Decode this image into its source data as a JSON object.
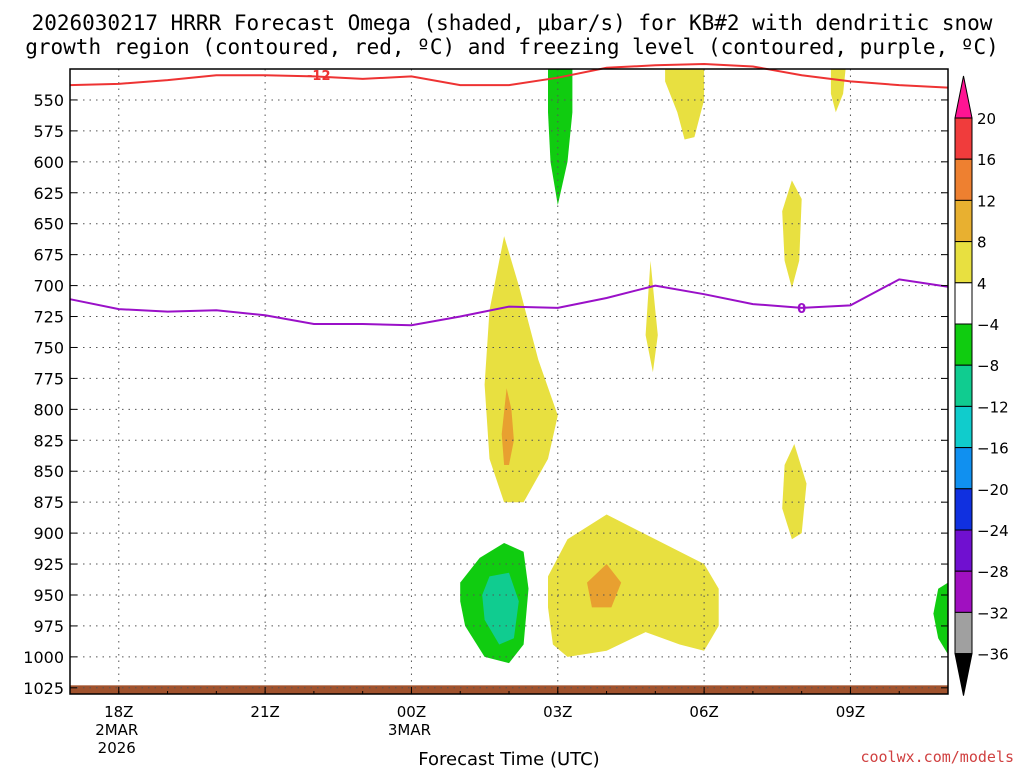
{
  "chart_data": {
    "type": "heatmap",
    "title_line1": "2026030217 HRRR Forecast Omega (shaded, μbar/s) for KB#2 with dendritic snow",
    "title_line2": "growth region (contoured, red, ºC) and freezing level (contoured, purple, ºC)",
    "xlabel": "Forecast Time (UTC)",
    "ylabel": "",
    "credit": "coolwx.com/models",
    "x_range_hours": [
      -1,
      17
    ],
    "x_ticks": [
      {
        "hour": 0,
        "label": "18Z",
        "sub1": "2MAR",
        "sub2": "2026"
      },
      {
        "hour": 3,
        "label": "21Z",
        "sub1": "",
        "sub2": ""
      },
      {
        "hour": 6,
        "label": "00Z",
        "sub1": "3MAR",
        "sub2": ""
      },
      {
        "hour": 9,
        "label": "03Z",
        "sub1": "",
        "sub2": ""
      },
      {
        "hour": 12,
        "label": "06Z",
        "sub1": "",
        "sub2": ""
      },
      {
        "hour": 15,
        "label": "09Z",
        "sub1": "",
        "sub2": ""
      }
    ],
    "y_range_hpa": [
      525,
      1030
    ],
    "y_ticks": [
      550,
      575,
      600,
      625,
      650,
      675,
      700,
      725,
      750,
      775,
      800,
      825,
      850,
      875,
      900,
      925,
      950,
      975,
      1000,
      1025
    ],
    "grid": true,
    "colorbar": {
      "levels": [
        "20",
        "16",
        "12",
        "8",
        "4",
        "−4",
        "−8",
        "−12",
        "−16",
        "−20",
        "−24",
        "−28",
        "−32",
        "−36"
      ],
      "colors": [
        "#ff1493",
        "#f03c3c",
        "#ee8030",
        "#e8b030",
        "#e8e040",
        "#ffffff",
        "#10cc10",
        "#10cc90",
        "#10cccc",
        "#1090f0",
        "#1030e0",
        "#7010d0",
        "#a010c0",
        "#a0a0a0",
        "#000000"
      ]
    },
    "contours": [
      {
        "name": "dendritic-growth-minus12",
        "label": "-12",
        "color": "#ee3333",
        "points": [
          [
            -1,
            538
          ],
          [
            0,
            537
          ],
          [
            1,
            534
          ],
          [
            2,
            530
          ],
          [
            3,
            530
          ],
          [
            4,
            531
          ],
          [
            5,
            533
          ],
          [
            6,
            531
          ],
          [
            7,
            538
          ],
          [
            8,
            538
          ],
          [
            9,
            532
          ],
          [
            10,
            524
          ],
          [
            11,
            522
          ],
          [
            12,
            521
          ],
          [
            13,
            523
          ],
          [
            14,
            530
          ],
          [
            15,
            535
          ],
          [
            16,
            538
          ],
          [
            17,
            540
          ]
        ]
      },
      {
        "name": "freezing-level-0",
        "label": "0",
        "color": "#9a10c8",
        "points": [
          [
            -1,
            711
          ],
          [
            0,
            719
          ],
          [
            1,
            721
          ],
          [
            2,
            720
          ],
          [
            3,
            724
          ],
          [
            4,
            731
          ],
          [
            5,
            731
          ],
          [
            6,
            732
          ],
          [
            7,
            725
          ],
          [
            8,
            717
          ],
          [
            9,
            718
          ],
          [
            10,
            710
          ],
          [
            11,
            700
          ],
          [
            12,
            707
          ],
          [
            13,
            715
          ],
          [
            14,
            718
          ],
          [
            15,
            716
          ],
          [
            16,
            695
          ],
          [
            17,
            701
          ]
        ]
      }
    ],
    "shaded_regions": [
      {
        "name": "yellow-plume-0130z",
        "value_range": "4 to 8",
        "color": "#e8e040",
        "polygon": [
          [
            7.9,
            660
          ],
          [
            8.2,
            700
          ],
          [
            8.6,
            760
          ],
          [
            9.0,
            805
          ],
          [
            8.8,
            840
          ],
          [
            8.3,
            875
          ],
          [
            7.9,
            875
          ],
          [
            7.6,
            840
          ],
          [
            7.5,
            780
          ],
          [
            7.6,
            720
          ]
        ]
      },
      {
        "name": "orange-core-0100z",
        "value_range": "8 to 12",
        "color": "#e8a030",
        "polygon": [
          [
            7.95,
            783
          ],
          [
            8.05,
            800
          ],
          [
            8.1,
            825
          ],
          [
            8.0,
            845
          ],
          [
            7.9,
            845
          ],
          [
            7.85,
            820
          ]
        ]
      },
      {
        "name": "green-lobe-0030z",
        "value_range": "-4 to -8",
        "color": "#10cc10",
        "polygon": [
          [
            7.0,
            940
          ],
          [
            7.4,
            920
          ],
          [
            7.9,
            908
          ],
          [
            8.3,
            915
          ],
          [
            8.4,
            945
          ],
          [
            8.3,
            990
          ],
          [
            8.0,
            1005
          ],
          [
            7.5,
            1000
          ],
          [
            7.1,
            975
          ],
          [
            7.0,
            955
          ]
        ]
      },
      {
        "name": "teal-core-0045z",
        "value_range": "-8 to -12",
        "color": "#10cc90",
        "polygon": [
          [
            7.6,
            935
          ],
          [
            8.0,
            932
          ],
          [
            8.2,
            955
          ],
          [
            8.1,
            985
          ],
          [
            7.8,
            990
          ],
          [
            7.5,
            970
          ],
          [
            7.45,
            950
          ]
        ]
      },
      {
        "name": "yellow-low-0300z",
        "value_range": "4 to 8",
        "color": "#e8e040",
        "polygon": [
          [
            8.8,
            935
          ],
          [
            9.2,
            905
          ],
          [
            10.0,
            885
          ],
          [
            11.0,
            905
          ],
          [
            12.0,
            925
          ],
          [
            12.3,
            945
          ],
          [
            12.3,
            975
          ],
          [
            12.0,
            995
          ],
          [
            11.5,
            990
          ],
          [
            10.8,
            980
          ],
          [
            10.0,
            995
          ],
          [
            9.2,
            1000
          ],
          [
            8.9,
            990
          ],
          [
            8.8,
            960
          ]
        ]
      },
      {
        "name": "orange-core-0300z",
        "value_range": "8 to 12",
        "color": "#e8a030",
        "polygon": [
          [
            9.6,
            940
          ],
          [
            10.0,
            925
          ],
          [
            10.3,
            940
          ],
          [
            10.1,
            960
          ],
          [
            9.7,
            960
          ]
        ]
      },
      {
        "name": "green-column-0300z",
        "value_range": "-4 to -8",
        "color": "#10cc10",
        "polygon": [
          [
            8.8,
            525
          ],
          [
            9.3,
            525
          ],
          [
            9.3,
            560
          ],
          [
            9.2,
            600
          ],
          [
            9.0,
            635
          ],
          [
            8.85,
            600
          ],
          [
            8.8,
            560
          ]
        ]
      },
      {
        "name": "yellow-top-0500z",
        "value_range": "4 to 8",
        "color": "#e8e040",
        "polygon": [
          [
            11.2,
            525
          ],
          [
            12.0,
            525
          ],
          [
            12.0,
            550
          ],
          [
            11.8,
            580
          ],
          [
            11.6,
            582
          ],
          [
            11.45,
            560
          ],
          [
            11.2,
            535
          ]
        ]
      },
      {
        "name": "yellow-top-0800z",
        "value_range": "4 to 8",
        "color": "#e8e040",
        "polygon": [
          [
            14.6,
            525
          ],
          [
            14.9,
            525
          ],
          [
            14.85,
            545
          ],
          [
            14.7,
            560
          ],
          [
            14.6,
            545
          ]
        ]
      },
      {
        "name": "yellow-sliver-0400z",
        "value_range": "4 to 8",
        "color": "#e8e040",
        "polygon": [
          [
            10.9,
            680
          ],
          [
            11.0,
            720
          ],
          [
            11.05,
            740
          ],
          [
            10.95,
            770
          ],
          [
            10.8,
            740
          ],
          [
            10.85,
            710
          ]
        ]
      },
      {
        "name": "yellow-narrow-0700z",
        "value_range": "4 to 8",
        "color": "#e8e040",
        "polygon": [
          [
            13.8,
            615
          ],
          [
            14.0,
            630
          ],
          [
            13.95,
            680
          ],
          [
            13.8,
            702
          ],
          [
            13.65,
            680
          ],
          [
            13.6,
            640
          ]
        ]
      },
      {
        "name": "yellow-narrow-0700z-low",
        "value_range": "4 to 8",
        "color": "#e8e040",
        "polygon": [
          [
            13.85,
            828
          ],
          [
            14.1,
            860
          ],
          [
            14.0,
            900
          ],
          [
            13.8,
            905
          ],
          [
            13.6,
            880
          ],
          [
            13.65,
            845
          ]
        ]
      },
      {
        "name": "green-edge-1100z",
        "value_range": "-4 to -8",
        "color": "#10cc10",
        "polygon": [
          [
            16.8,
            945
          ],
          [
            17.0,
            940
          ],
          [
            17.0,
            998
          ],
          [
            16.8,
            985
          ],
          [
            16.7,
            965
          ]
        ]
      }
    ],
    "ground_band": {
      "name": "terrain",
      "color": "#a0522d",
      "from_hpa": 1023,
      "to_hpa": 1030
    }
  }
}
